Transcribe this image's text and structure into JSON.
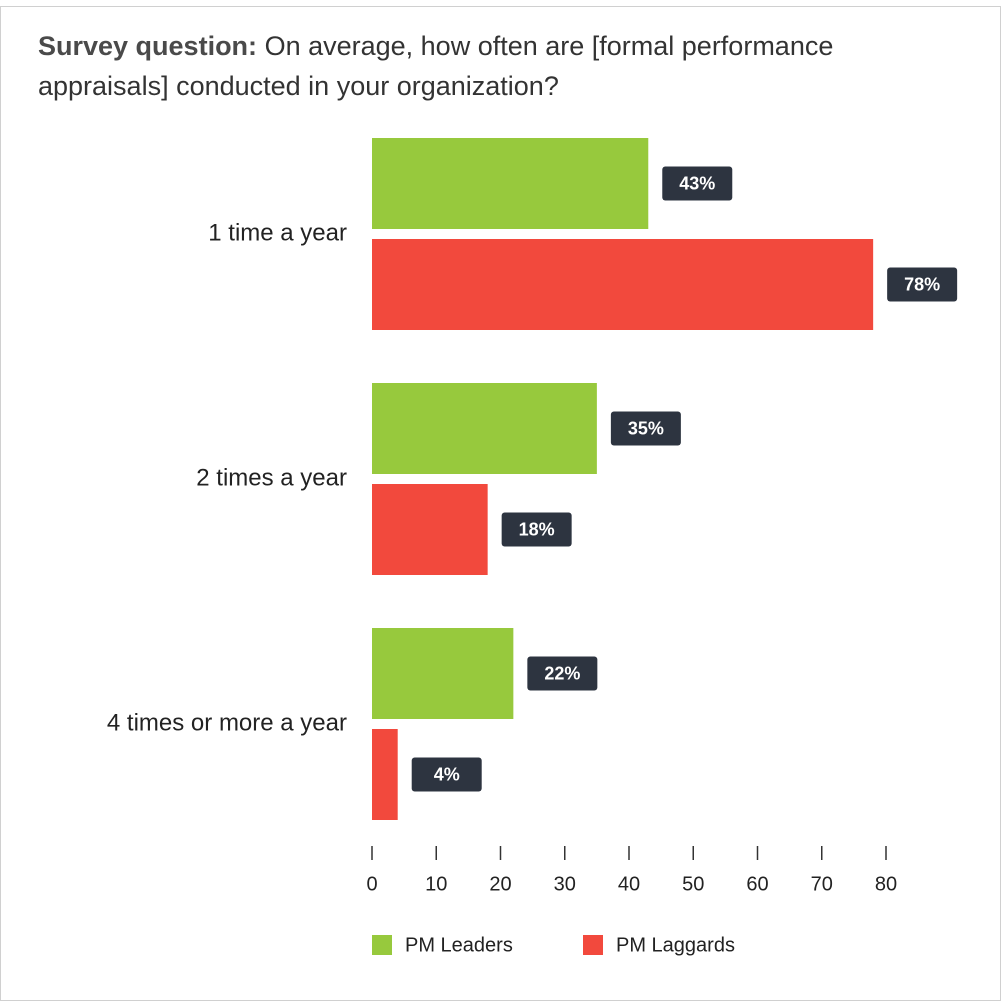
{
  "chart_data": {
    "type": "barh",
    "title_lead": "Survey question:",
    "title": "On average, how often are [formal performance appraisals] conducted in your organization?",
    "categories": [
      "1 time a year",
      "2 times a year",
      "4 times or more a year"
    ],
    "series": [
      {
        "name": "PM Leaders",
        "color": "#97c93d",
        "values": [
          43,
          35,
          22
        ],
        "value_labels": [
          "43%",
          "35%",
          "22%"
        ]
      },
      {
        "name": "PM Laggards",
        "color": "#f2493d",
        "values": [
          78,
          18,
          4
        ],
        "value_labels": [
          "78%",
          "18%",
          "4%"
        ]
      }
    ],
    "xlim": [
      0,
      80
    ],
    "xticks": [
      0,
      10,
      20,
      30,
      40,
      50,
      60,
      70,
      80
    ],
    "legend": "bottom"
  }
}
